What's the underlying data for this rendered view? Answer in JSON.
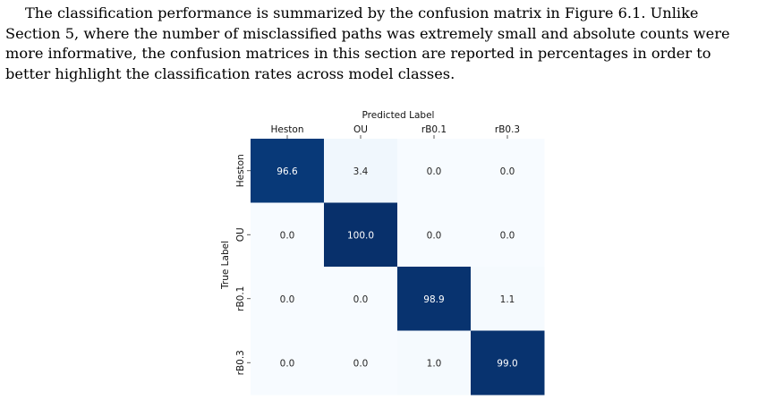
{
  "paragraph": {
    "lines": [
      "The classification performance is summarized by the confusion matrix in Figure 6.1. Unlike",
      "Section 5, where the number of misclassified paths was extremely small and absolute counts were",
      "more informative, the confusion matrices in this section are reported in percentages in order to",
      "better highlight the classification rates across model classes."
    ]
  },
  "chart_data": {
    "type": "heatmap",
    "xlabel": "Predicted Label",
    "ylabel": "True Label",
    "x_categories": [
      "Heston",
      "OU",
      "rB0.1",
      "rB0.3"
    ],
    "y_categories": [
      "Heston",
      "OU",
      "rB0.1",
      "rB0.3"
    ],
    "values": [
      [
        96.6,
        3.4,
        0.0,
        0.0
      ],
      [
        0.0,
        100.0,
        0.0,
        0.0
      ],
      [
        0.0,
        0.0,
        98.9,
        1.1
      ],
      [
        0.0,
        0.0,
        1.0,
        99.0
      ]
    ],
    "value_labels": [
      [
        "96.6",
        "3.4",
        "0.0",
        "0.0"
      ],
      [
        "0.0",
        "100.0",
        "0.0",
        "0.0"
      ],
      [
        "0.0",
        "0.0",
        "98.9",
        "1.1"
      ],
      [
        "0.0",
        "0.0",
        "1.0",
        "99.0"
      ]
    ],
    "value_range": [
      0,
      100
    ],
    "colormap": "Blues",
    "grid": false,
    "x_axis_position": "top",
    "colors": {
      "low": "#f7fbff",
      "high": "#08306b"
    }
  }
}
